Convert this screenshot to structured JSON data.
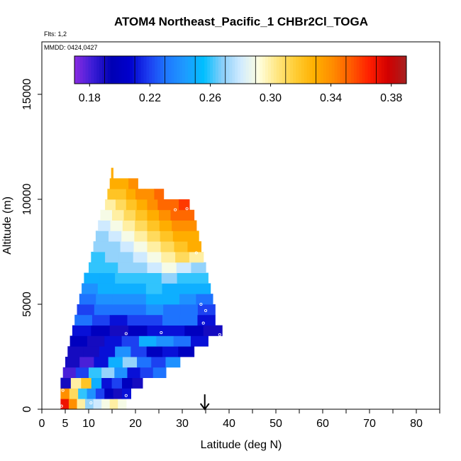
{
  "chart_data": {
    "type": "heatmap",
    "title": "ATOM4 Northeast_Pacific_1 CHBr2Cl_TOGA",
    "flights_label": "Flts: 1,2",
    "dates_label": "MMDD: 0424,0427",
    "xlabel": "Latitude (deg N)",
    "ylabel": "Altitude (m)",
    "xlim": [
      0,
      85
    ],
    "ylim": [
      0,
      17500
    ],
    "x_ticks": [
      0,
      5,
      10,
      20,
      30,
      40,
      50,
      60,
      70,
      80
    ],
    "y_ticks": [
      0,
      5000,
      10000,
      15000
    ],
    "colorbar": {
      "range": [
        0.17,
        0.39
      ],
      "ticks": [
        "0.18",
        "0.22",
        "0.26",
        "0.30",
        "0.34",
        "0.38"
      ],
      "tick_values": [
        0.18,
        0.22,
        0.26,
        0.3,
        0.34,
        0.38
      ],
      "colors": [
        "#8a2be2",
        "#3a1dd6",
        "#0000b4",
        "#0000cd",
        "#1c3cf0",
        "#1e78ff",
        "#1e9bff",
        "#00bfff",
        "#87cefa",
        "#cfeaff",
        "#ffffe0",
        "#ffe680",
        "#ffcc33",
        "#ffb000",
        "#ff8c00",
        "#ff5a00",
        "#ff1e00",
        "#d20000",
        "#a52020"
      ]
    },
    "arrow_latitude": 34.8,
    "layers": [
      {
        "alt": 250,
        "lat_start": 4,
        "lat_end": 18,
        "values": [
          0.37,
          0.34,
          0.3,
          0.27,
          0.28,
          0.29,
          0.3,
          0.29
        ]
      },
      {
        "alt": 750,
        "lat_start": 4,
        "lat_end": 19,
        "values": [
          0.34,
          0.31,
          0.26,
          0.24,
          0.22,
          0.2,
          0.19,
          0.21
        ]
      },
      {
        "alt": 1250,
        "lat_start": 4,
        "lat_end": 21.5,
        "values": [
          0.19,
          0.3,
          0.32,
          0.25,
          0.21,
          0.22,
          0.2,
          0.19
        ]
      },
      {
        "alt": 1750,
        "lat_start": 4.5,
        "lat_end": 26.5,
        "values": [
          0.18,
          0.22,
          0.26,
          0.27,
          0.24,
          0.21,
          0.22,
          0.23
        ]
      },
      {
        "alt": 2250,
        "lat_start": 5,
        "lat_end": 29.5,
        "values": [
          0.19,
          0.18,
          0.21,
          0.25,
          0.27,
          0.23,
          0.22,
          0.24
        ]
      },
      {
        "alt": 2750,
        "lat_start": 5.5,
        "lat_end": 32.5,
        "values": [
          0.19,
          0.19,
          0.21,
          0.24,
          0.22,
          0.2,
          0.21,
          0.2
        ]
      },
      {
        "alt": 3250,
        "lat_start": 6,
        "lat_end": 35.5,
        "values": [
          0.2,
          0.19,
          0.21,
          0.22,
          0.25,
          0.24,
          0.23,
          0.21
        ]
      },
      {
        "alt": 3750,
        "lat_start": 6.5,
        "lat_end": 38.5,
        "values": [
          0.21,
          0.2,
          0.19,
          0.2,
          0.21,
          0.21,
          0.2,
          0.19
        ]
      },
      {
        "alt": 4250,
        "lat_start": 7,
        "lat_end": 37,
        "values": [
          0.23,
          0.22,
          0.21,
          0.22,
          0.22,
          0.23,
          0.23,
          0.21
        ]
      },
      {
        "alt": 4750,
        "lat_start": 7.5,
        "lat_end": 37,
        "values": [
          0.22,
          0.23,
          0.23,
          0.23,
          0.24,
          0.23,
          0.23,
          0.22
        ]
      },
      {
        "alt": 5250,
        "lat_start": 8,
        "lat_end": 36.5,
        "values": [
          0.23,
          0.24,
          0.24,
          0.24,
          0.25,
          0.25,
          0.24,
          0.23
        ]
      },
      {
        "alt": 5750,
        "lat_start": 8.5,
        "lat_end": 36,
        "values": [
          0.24,
          0.25,
          0.25,
          0.25,
          0.26,
          0.25,
          0.25,
          0.25
        ]
      },
      {
        "alt": 6250,
        "lat_start": 9,
        "lat_end": 35.5,
        "values": [
          0.25,
          0.25,
          0.26,
          0.26,
          0.26,
          0.27,
          0.26,
          0.26
        ]
      },
      {
        "alt": 6750,
        "lat_start": 10,
        "lat_end": 35,
        "values": [
          0.26,
          0.26,
          0.27,
          0.27,
          0.28,
          0.29,
          0.28,
          0.27
        ]
      },
      {
        "alt": 7250,
        "lat_start": 10.5,
        "lat_end": 34.5,
        "values": [
          0.26,
          0.27,
          0.27,
          0.28,
          0.29,
          0.3,
          0.31,
          0.3
        ]
      },
      {
        "alt": 7750,
        "lat_start": 11,
        "lat_end": 34,
        "values": [
          0.27,
          0.27,
          0.28,
          0.29,
          0.3,
          0.31,
          0.32,
          0.33
        ]
      },
      {
        "alt": 8250,
        "lat_start": 11.5,
        "lat_end": 33.5,
        "values": [
          0.27,
          0.28,
          0.29,
          0.3,
          0.31,
          0.32,
          0.33,
          0.33
        ]
      },
      {
        "alt": 8750,
        "lat_start": 12,
        "lat_end": 33,
        "values": [
          0.28,
          0.29,
          0.3,
          0.31,
          0.32,
          0.33,
          0.34,
          0.34
        ]
      },
      {
        "alt": 9250,
        "lat_start": 12.5,
        "lat_end": 32.5,
        "values": [
          0.29,
          0.3,
          0.31,
          0.32,
          0.33,
          0.34,
          0.35,
          0.35
        ]
      },
      {
        "alt": 9750,
        "lat_start": 13.5,
        "lat_end": 31.5,
        "values": [
          0.3,
          0.31,
          0.32,
          0.33,
          0.34,
          0.35,
          0.35,
          0.36
        ]
      },
      {
        "alt": 10250,
        "lat_start": 14,
        "lat_end": 26,
        "values": [
          0.32,
          0.32,
          0.33,
          0.34,
          0.34,
          0.35
        ]
      },
      {
        "alt": 10750,
        "lat_start": 14.5,
        "lat_end": 20.5,
        "values": [
          0.33,
          0.33,
          0.34
        ]
      },
      {
        "alt": 11250,
        "lat_start": 14.8,
        "lat_end": 15.2,
        "values": [
          0.33
        ]
      }
    ],
    "sample_points": [
      {
        "lat": 4.2,
        "alt": 150
      },
      {
        "lat": 4.5,
        "alt": 900
      },
      {
        "lat": 18,
        "alt": 650
      },
      {
        "lat": 18,
        "alt": 3600
      },
      {
        "lat": 25.5,
        "alt": 3650
      },
      {
        "lat": 34,
        "alt": 5000
      },
      {
        "lat": 34.5,
        "alt": 4100
      },
      {
        "lat": 38,
        "alt": 3550
      },
      {
        "lat": 35,
        "alt": 4700
      },
      {
        "lat": 28.5,
        "alt": 9500
      },
      {
        "lat": 31,
        "alt": 9550
      },
      {
        "lat": 33,
        "alt": 7450
      },
      {
        "lat": 10.5,
        "alt": 300
      }
    ]
  }
}
